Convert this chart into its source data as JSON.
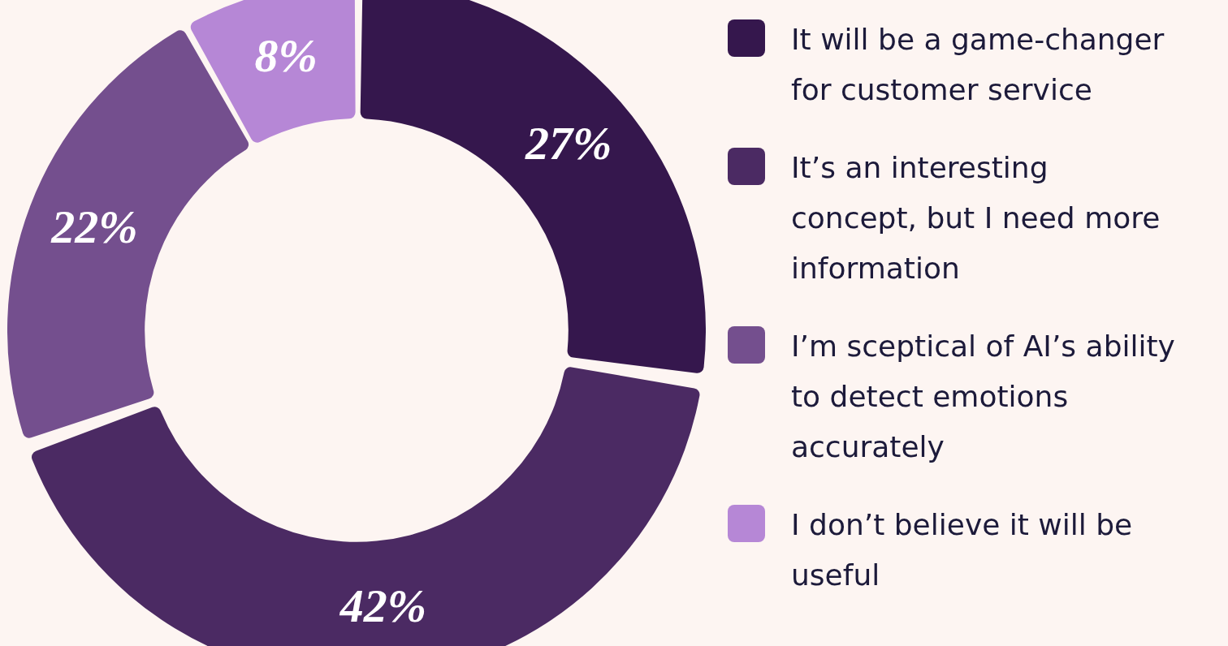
{
  "chart_data": {
    "type": "donut",
    "categories": [
      "It will be a game-changer for customer service",
      "It’s an interesting concept, but I need more information",
      "I’m sceptical of AI’s ability to detect emotions accurately",
      "I don’t believe it will be useful"
    ],
    "values": [
      27,
      42,
      22,
      8
    ],
    "colors": [
      "#35174d",
      "#4b2a63",
      "#744f8e",
      "#b687d6"
    ],
    "value_labels": [
      "27%",
      "42%",
      "22%",
      "8%"
    ],
    "legend": "right"
  }
}
